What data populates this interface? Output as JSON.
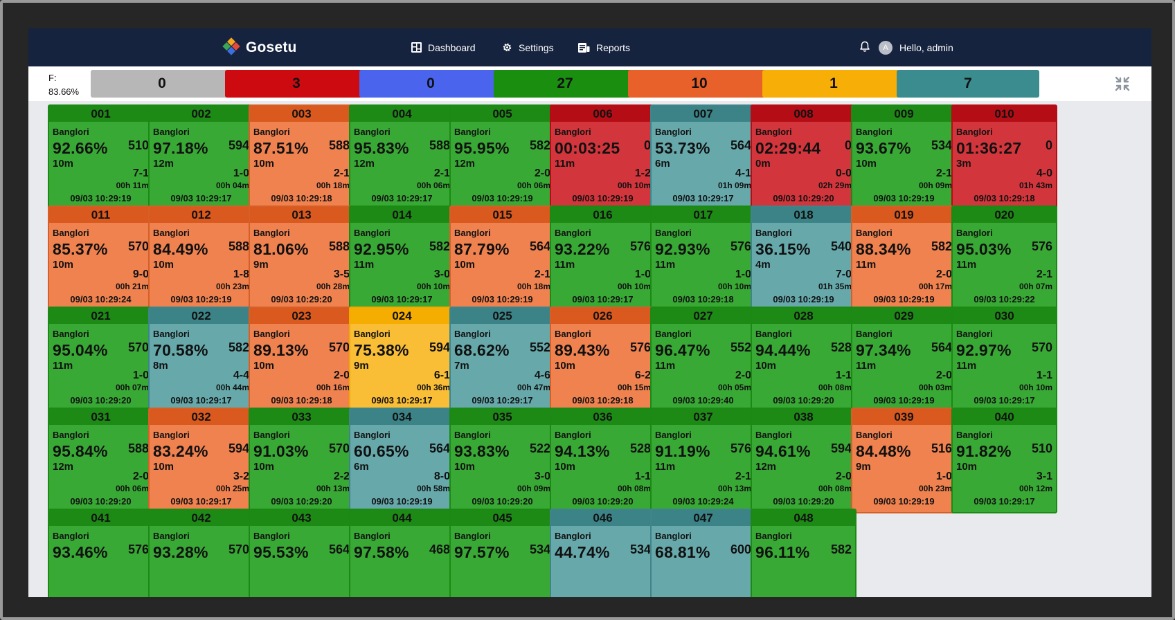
{
  "app": {
    "name": "Gosetu"
  },
  "nav": {
    "dashboard": "Dashboard",
    "settings": "Settings",
    "reports": "Reports",
    "avatar_initial": "A",
    "greeting": "Hello, admin"
  },
  "summary": {
    "f_label": "F:",
    "f_value": "83.66%",
    "counts": [
      {
        "value": "0",
        "color": "#b7b7b7"
      },
      {
        "value": "3",
        "color": "#cc0a10"
      },
      {
        "value": "0",
        "color": "#4a64ee"
      },
      {
        "value": "27",
        "color": "#1a8e0f"
      },
      {
        "value": "10",
        "color": "#e8602a"
      },
      {
        "value": "1",
        "color": "#f7ae07"
      },
      {
        "value": "7",
        "color": "#3a8c8e"
      }
    ]
  },
  "tiles": [
    {
      "id": "001",
      "status": "green",
      "loc": "Banglori",
      "pct": "92.66%",
      "count": "510",
      "dur": "10m",
      "score": "7-1",
      "time": "00h 11m",
      "ts": "09/03 10:29:19"
    },
    {
      "id": "002",
      "status": "green",
      "loc": "Banglori",
      "pct": "97.18%",
      "count": "594",
      "dur": "12m",
      "score": "1-0",
      "time": "00h 04m",
      "ts": "09/03 10:29:17"
    },
    {
      "id": "003",
      "status": "orange",
      "loc": "Banglori",
      "pct": "87.51%",
      "count": "588",
      "dur": "10m",
      "score": "2-1",
      "time": "00h 18m",
      "ts": "09/03 10:29:18"
    },
    {
      "id": "004",
      "status": "green",
      "loc": "Banglori",
      "pct": "95.83%",
      "count": "588",
      "dur": "12m",
      "score": "2-1",
      "time": "00h 06m",
      "ts": "09/03 10:29:17"
    },
    {
      "id": "005",
      "status": "green",
      "loc": "Banglori",
      "pct": "95.95%",
      "count": "582",
      "dur": "12m",
      "score": "2-0",
      "time": "00h 06m",
      "ts": "09/03 10:29:19"
    },
    {
      "id": "006",
      "status": "red",
      "loc": "Banglori",
      "pct": "00:03:25",
      "count": "0",
      "dur": "11m",
      "score": "1-2",
      "time": "00h 10m",
      "ts": "09/03 10:29:19"
    },
    {
      "id": "007",
      "status": "teal",
      "loc": "Banglori",
      "pct": "53.73%",
      "count": "564",
      "dur": "6m",
      "score": "4-1",
      "time": "01h 09m",
      "ts": "09/03 10:29:17"
    },
    {
      "id": "008",
      "status": "red",
      "loc": "Banglori",
      "pct": "02:29:44",
      "count": "0",
      "dur": "0m",
      "score": "0-0",
      "time": "02h 29m",
      "ts": "09/03 10:29:20"
    },
    {
      "id": "009",
      "status": "green",
      "loc": "Banglori",
      "pct": "93.67%",
      "count": "534",
      "dur": "10m",
      "score": "2-1",
      "time": "00h 09m",
      "ts": "09/03 10:29:19"
    },
    {
      "id": "010",
      "status": "red",
      "loc": "Banglori",
      "pct": "01:36:27",
      "count": "0",
      "dur": "3m",
      "score": "4-0",
      "time": "01h 43m",
      "ts": "09/03 10:29:18"
    },
    {
      "id": "011",
      "status": "orange",
      "loc": "Banglori",
      "pct": "85.37%",
      "count": "570",
      "dur": "10m",
      "score": "9-0",
      "time": "00h 21m",
      "ts": "09/03 10:29:24"
    },
    {
      "id": "012",
      "status": "orange",
      "loc": "Banglori",
      "pct": "84.49%",
      "count": "588",
      "dur": "10m",
      "score": "1-8",
      "time": "00h 23m",
      "ts": "09/03 10:29:19"
    },
    {
      "id": "013",
      "status": "orange",
      "loc": "Banglori",
      "pct": "81.06%",
      "count": "588",
      "dur": "9m",
      "score": "3-5",
      "time": "00h 28m",
      "ts": "09/03 10:29:20"
    },
    {
      "id": "014",
      "status": "green",
      "loc": "Banglori",
      "pct": "92.95%",
      "count": "582",
      "dur": "11m",
      "score": "3-0",
      "time": "00h 10m",
      "ts": "09/03 10:29:17"
    },
    {
      "id": "015",
      "status": "orange",
      "loc": "Banglori",
      "pct": "87.79%",
      "count": "564",
      "dur": "10m",
      "score": "2-1",
      "time": "00h 18m",
      "ts": "09/03 10:29:19"
    },
    {
      "id": "016",
      "status": "green",
      "loc": "Banglori",
      "pct": "93.22%",
      "count": "576",
      "dur": "11m",
      "score": "1-0",
      "time": "00h 10m",
      "ts": "09/03 10:29:17"
    },
    {
      "id": "017",
      "status": "green",
      "loc": "Banglori",
      "pct": "92.93%",
      "count": "576",
      "dur": "11m",
      "score": "1-0",
      "time": "00h 10m",
      "ts": "09/03 10:29:18"
    },
    {
      "id": "018",
      "status": "teal",
      "loc": "Banglori",
      "pct": "36.15%",
      "count": "540",
      "dur": "4m",
      "score": "7-0",
      "time": "01h 35m",
      "ts": "09/03 10:29:19"
    },
    {
      "id": "019",
      "status": "orange",
      "loc": "Banglori",
      "pct": "88.34%",
      "count": "582",
      "dur": "11m",
      "score": "2-0",
      "time": "00h 17m",
      "ts": "09/03 10:29:19"
    },
    {
      "id": "020",
      "status": "green",
      "loc": "Banglori",
      "pct": "95.03%",
      "count": "576",
      "dur": "11m",
      "score": "2-1",
      "time": "00h 07m",
      "ts": "09/03 10:29:22"
    },
    {
      "id": "021",
      "status": "green",
      "loc": "Banglori",
      "pct": "95.04%",
      "count": "570",
      "dur": "11m",
      "score": "1-0",
      "time": "00h 07m",
      "ts": "09/03 10:29:20"
    },
    {
      "id": "022",
      "status": "teal",
      "loc": "Banglori",
      "pct": "70.58%",
      "count": "582",
      "dur": "8m",
      "score": "4-4",
      "time": "00h 44m",
      "ts": "09/03 10:29:17"
    },
    {
      "id": "023",
      "status": "orange",
      "loc": "Banglori",
      "pct": "89.13%",
      "count": "570",
      "dur": "10m",
      "score": "2-0",
      "time": "00h 16m",
      "ts": "09/03 10:29:18"
    },
    {
      "id": "024",
      "status": "yellow",
      "loc": "Banglori",
      "pct": "75.38%",
      "count": "594",
      "dur": "9m",
      "score": "6-1",
      "time": "00h 36m",
      "ts": "09/03 10:29:17"
    },
    {
      "id": "025",
      "status": "teal",
      "loc": "Banglori",
      "pct": "68.62%",
      "count": "552",
      "dur": "7m",
      "score": "4-6",
      "time": "00h 47m",
      "ts": "09/03 10:29:17"
    },
    {
      "id": "026",
      "status": "orange",
      "loc": "Banglori",
      "pct": "89.43%",
      "count": "576",
      "dur": "10m",
      "score": "6-2",
      "time": "00h 15m",
      "ts": "09/03 10:29:18"
    },
    {
      "id": "027",
      "status": "green",
      "loc": "Banglori",
      "pct": "96.47%",
      "count": "552",
      "dur": "11m",
      "score": "2-0",
      "time": "00h 05m",
      "ts": "09/03 10:29:40"
    },
    {
      "id": "028",
      "status": "green",
      "loc": "Banglori",
      "pct": "94.44%",
      "count": "528",
      "dur": "10m",
      "score": "1-1",
      "time": "00h 08m",
      "ts": "09/03 10:29:20"
    },
    {
      "id": "029",
      "status": "green",
      "loc": "Banglori",
      "pct": "97.34%",
      "count": "564",
      "dur": "11m",
      "score": "2-0",
      "time": "00h 03m",
      "ts": "09/03 10:29:19"
    },
    {
      "id": "030",
      "status": "green",
      "loc": "Banglori",
      "pct": "92.97%",
      "count": "570",
      "dur": "11m",
      "score": "1-1",
      "time": "00h 10m",
      "ts": "09/03 10:29:17"
    },
    {
      "id": "031",
      "status": "green",
      "loc": "Banglori",
      "pct": "95.84%",
      "count": "588",
      "dur": "12m",
      "score": "2-0",
      "time": "00h 06m",
      "ts": "09/03 10:29:20"
    },
    {
      "id": "032",
      "status": "orange",
      "loc": "Banglori",
      "pct": "83.24%",
      "count": "594",
      "dur": "10m",
      "score": "3-2",
      "time": "00h 25m",
      "ts": "09/03 10:29:17"
    },
    {
      "id": "033",
      "status": "green",
      "loc": "Banglori",
      "pct": "91.03%",
      "count": "570",
      "dur": "10m",
      "score": "2-2",
      "time": "00h 13m",
      "ts": "09/03 10:29:20"
    },
    {
      "id": "034",
      "status": "teal",
      "loc": "Banglori",
      "pct": "60.65%",
      "count": "564",
      "dur": "6m",
      "score": "8-0",
      "time": "00h 58m",
      "ts": "09/03 10:29:19"
    },
    {
      "id": "035",
      "status": "green",
      "loc": "Banglori",
      "pct": "93.83%",
      "count": "522",
      "dur": "10m",
      "score": "3-0",
      "time": "00h 09m",
      "ts": "09/03 10:29:20"
    },
    {
      "id": "036",
      "status": "green",
      "loc": "Banglori",
      "pct": "94.13%",
      "count": "528",
      "dur": "10m",
      "score": "1-1",
      "time": "00h 08m",
      "ts": "09/03 10:29:20"
    },
    {
      "id": "037",
      "status": "green",
      "loc": "Banglori",
      "pct": "91.19%",
      "count": "576",
      "dur": "11m",
      "score": "2-1",
      "time": "00h 13m",
      "ts": "09/03 10:29:24"
    },
    {
      "id": "038",
      "status": "green",
      "loc": "Banglori",
      "pct": "94.61%",
      "count": "594",
      "dur": "12m",
      "score": "2-0",
      "time": "00h 08m",
      "ts": "09/03 10:29:20"
    },
    {
      "id": "039",
      "status": "orange",
      "loc": "Banglori",
      "pct": "84.48%",
      "count": "516",
      "dur": "9m",
      "score": "1-0",
      "time": "00h 23m",
      "ts": "09/03 10:29:19"
    },
    {
      "id": "040",
      "status": "green",
      "loc": "Banglori",
      "pct": "91.82%",
      "count": "510",
      "dur": "10m",
      "score": "3-1",
      "time": "00h 12m",
      "ts": "09/03 10:29:17"
    },
    {
      "id": "041",
      "status": "green",
      "loc": "Banglori",
      "pct": "93.46%",
      "count": "576"
    },
    {
      "id": "042",
      "status": "green",
      "loc": "Banglori",
      "pct": "93.28%",
      "count": "570"
    },
    {
      "id": "043",
      "status": "green",
      "loc": "Banglori",
      "pct": "95.53%",
      "count": "564"
    },
    {
      "id": "044",
      "status": "green",
      "loc": "Banglori",
      "pct": "97.58%",
      "count": "468"
    },
    {
      "id": "045",
      "status": "green",
      "loc": "Banglori",
      "pct": "97.57%",
      "count": "534"
    },
    {
      "id": "046",
      "status": "teal",
      "loc": "Banglori",
      "pct": "44.74%",
      "count": "534"
    },
    {
      "id": "047",
      "status": "teal",
      "loc": "Banglori",
      "pct": "68.81%",
      "count": "600"
    },
    {
      "id": "048",
      "status": "green",
      "loc": "Banglori",
      "pct": "96.11%",
      "count": "582"
    }
  ]
}
